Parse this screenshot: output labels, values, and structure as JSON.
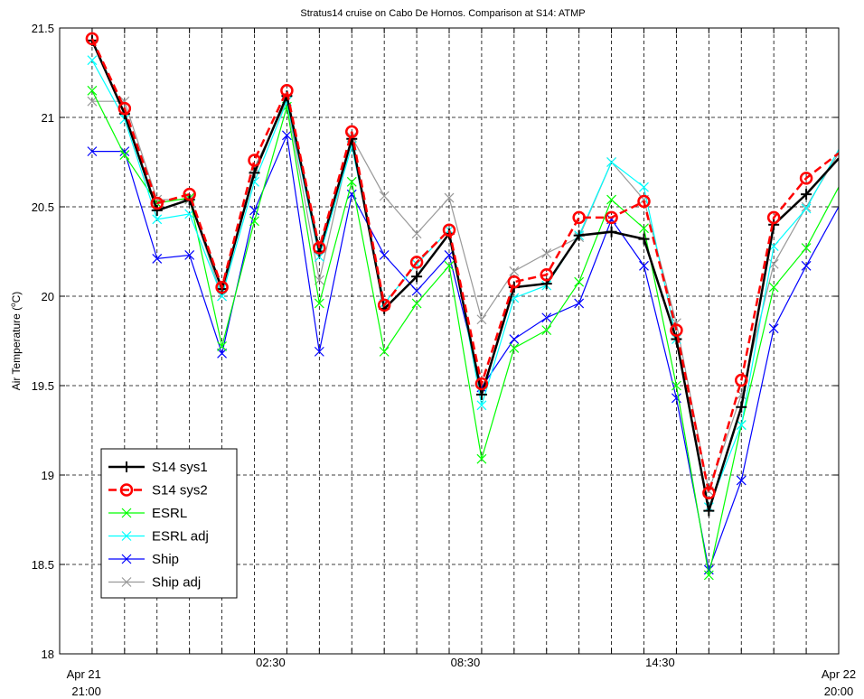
{
  "chart_data": {
    "type": "line",
    "title": "Stratus14 cruise on Cabo De Hornos. Comparison at S14: ATMP",
    "ylabel_prefix": "Air Temperature (",
    "ylabel_sup": "o",
    "ylabel_suffix": "C)",
    "xlabel": "",
    "ylim": [
      18,
      21.5
    ],
    "yticks": [
      18,
      18.5,
      19,
      19.5,
      20,
      20.5,
      21,
      21.5
    ],
    "ytick_labels": [
      "18",
      "18.5",
      "19",
      "19.5",
      "20",
      "20.5",
      "21",
      "21.5"
    ],
    "xlim": [
      "2024-04-21 20:00",
      "2024-04-22 20:00"
    ],
    "x": [
      "21:00",
      "22:00",
      "23:00",
      "00:00",
      "01:00",
      "02:00",
      "03:00",
      "04:00",
      "05:00",
      "06:00",
      "07:00",
      "08:00",
      "09:00",
      "10:00",
      "11:00",
      "12:00",
      "13:00",
      "14:00",
      "15:00",
      "16:00",
      "17:00",
      "18:00",
      "19:00",
      "20:00"
    ],
    "xtick_labels": [
      {
        "hour": 1,
        "line1": "Apr 21",
        "line2": "21:00"
      },
      {
        "hour": 6.5,
        "line1": "",
        "line2": "02:30"
      },
      {
        "hour": 12.5,
        "line1": "",
        "line2": "08:30"
      },
      {
        "hour": 18.5,
        "line1": "",
        "line2": "14:30"
      },
      {
        "hour": 24,
        "line1": "Apr 22",
        "line2": "20:00"
      }
    ],
    "grid": true,
    "legend_position": "bottom-left",
    "series": [
      {
        "name": "S14 sys1",
        "color": "#000000",
        "marker": "plus",
        "dashed": false,
        "width": 2.5,
        "values": [
          21.43,
          21.02,
          20.48,
          20.54,
          20.04,
          20.69,
          21.12,
          20.25,
          20.88,
          19.93,
          20.11,
          20.35,
          19.45,
          20.05,
          20.07,
          20.34,
          20.36,
          20.32,
          19.76,
          18.8,
          19.38,
          20.4,
          20.57,
          20.77
        ]
      },
      {
        "name": "S14 sys2",
        "color": "#ff0000",
        "marker": "circle",
        "dashed": true,
        "width": 2.5,
        "values": [
          21.44,
          21.05,
          20.52,
          20.57,
          20.05,
          20.76,
          21.15,
          20.27,
          20.92,
          19.95,
          20.19,
          20.37,
          19.51,
          20.08,
          20.12,
          20.44,
          20.44,
          20.53,
          19.81,
          18.9,
          19.53,
          20.44,
          20.66,
          20.8
        ]
      },
      {
        "name": "ESRL",
        "color": "#00ff00",
        "marker": "x",
        "dashed": false,
        "width": 1.2,
        "values": [
          21.15,
          20.79,
          20.52,
          20.55,
          19.72,
          20.42,
          21.06,
          19.96,
          20.64,
          19.69,
          19.96,
          20.17,
          19.09,
          19.71,
          19.81,
          20.08,
          20.54,
          20.38,
          19.5,
          18.44,
          19.28,
          20.05,
          20.27,
          20.61
        ]
      },
      {
        "name": "ESRL adj",
        "color": "#00ffff",
        "marker": "x",
        "dashed": false,
        "width": 1.2,
        "values": [
          21.32,
          20.99,
          20.43,
          20.46,
          20.0,
          20.64,
          21.09,
          20.22,
          20.84,
          19.96,
          20.18,
          20.37,
          19.39,
          19.99,
          20.06,
          20.34,
          20.75,
          20.61,
          19.76,
          18.82,
          19.28,
          20.28,
          20.49,
          20.82
        ]
      },
      {
        "name": "Ship",
        "color": "#0000ff",
        "marker": "x",
        "dashed": false,
        "width": 1.2,
        "values": [
          20.81,
          20.81,
          20.21,
          20.23,
          19.68,
          20.48,
          20.9,
          19.69,
          20.57,
          20.23,
          20.03,
          20.23,
          19.49,
          19.76,
          19.88,
          19.96,
          20.43,
          20.17,
          19.43,
          18.47,
          18.97,
          19.82,
          20.17,
          20.5
        ]
      },
      {
        "name": "Ship adj",
        "color": "#999999",
        "marker": "x",
        "dashed": false,
        "width": 1.2,
        "values": [
          21.09,
          21.09,
          20.54,
          20.54,
          20.0,
          20.72,
          21.09,
          20.09,
          20.89,
          20.56,
          20.35,
          20.55,
          19.87,
          20.14,
          20.24,
          20.33,
          20.75,
          20.54,
          19.85,
          18.91,
          19.45,
          20.18,
          20.5,
          20.8
        ]
      }
    ]
  }
}
